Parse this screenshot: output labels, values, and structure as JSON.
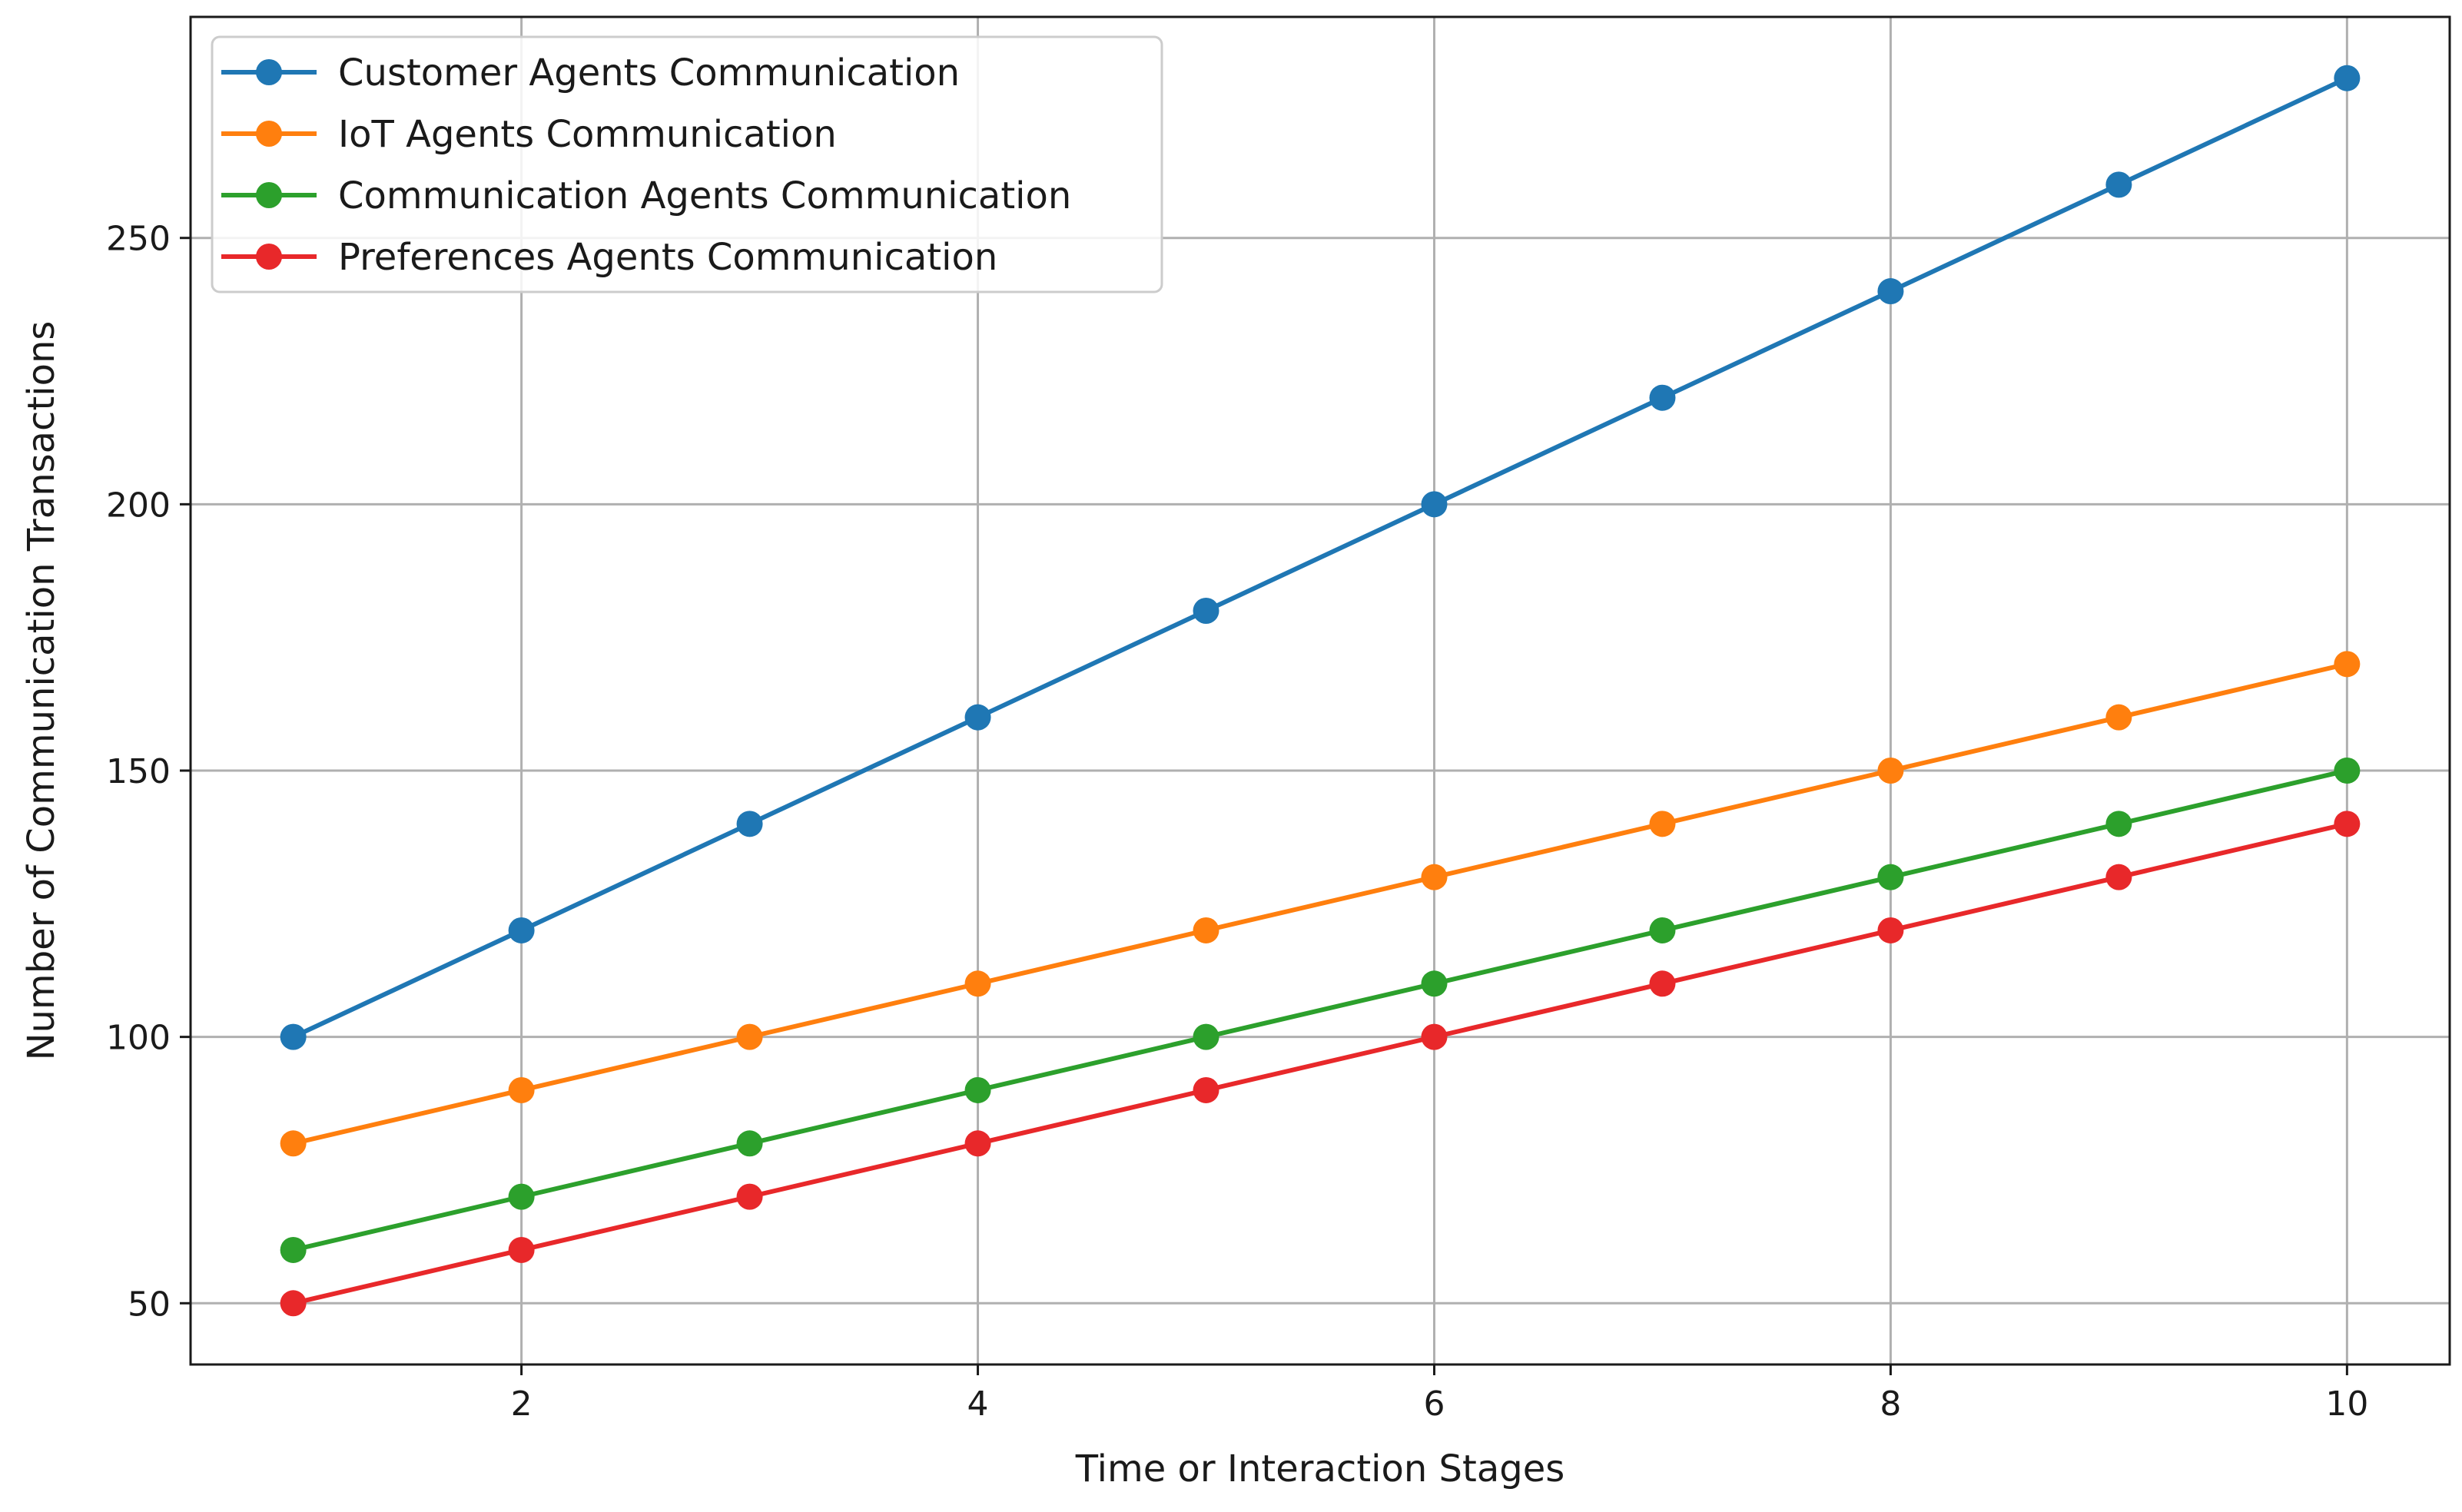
{
  "chart_data": {
    "type": "line",
    "title": "",
    "xlabel": "Time or Interaction Stages",
    "ylabel": "Number of Communication Transactions",
    "x": [
      1,
      2,
      3,
      4,
      5,
      6,
      7,
      8,
      9,
      10
    ],
    "xlim": [
      0.55,
      10.45
    ],
    "ylim": [
      38.5,
      291.5
    ],
    "xticks": [
      2,
      4,
      6,
      8,
      10
    ],
    "yticks": [
      50,
      100,
      150,
      200,
      250
    ],
    "xtick_labels": [
      "2",
      "4",
      "6",
      "8",
      "10"
    ],
    "ytick_labels": [
      "50",
      "100",
      "150",
      "200",
      "250"
    ],
    "grid": true,
    "legend_position": "top-left",
    "marker": "circle",
    "series": [
      {
        "name": "Customer Agents Communication",
        "color": "#1f77b4",
        "values": [
          100,
          120,
          140,
          160,
          180,
          200,
          220,
          240,
          260,
          280
        ]
      },
      {
        "name": "IoT Agents Communication",
        "color": "#ff7f0e",
        "values": [
          80,
          90,
          100,
          110,
          120,
          130,
          140,
          150,
          160,
          170
        ]
      },
      {
        "name": "Communication Agents Communication",
        "color": "#2ca02c",
        "values": [
          60,
          70,
          80,
          90,
          100,
          110,
          120,
          130,
          140,
          150
        ]
      },
      {
        "name": "Preferences Agents Communication",
        "color": "#e8282a",
        "values": [
          50,
          60,
          70,
          80,
          90,
          100,
          110,
          120,
          130,
          140
        ]
      }
    ]
  }
}
